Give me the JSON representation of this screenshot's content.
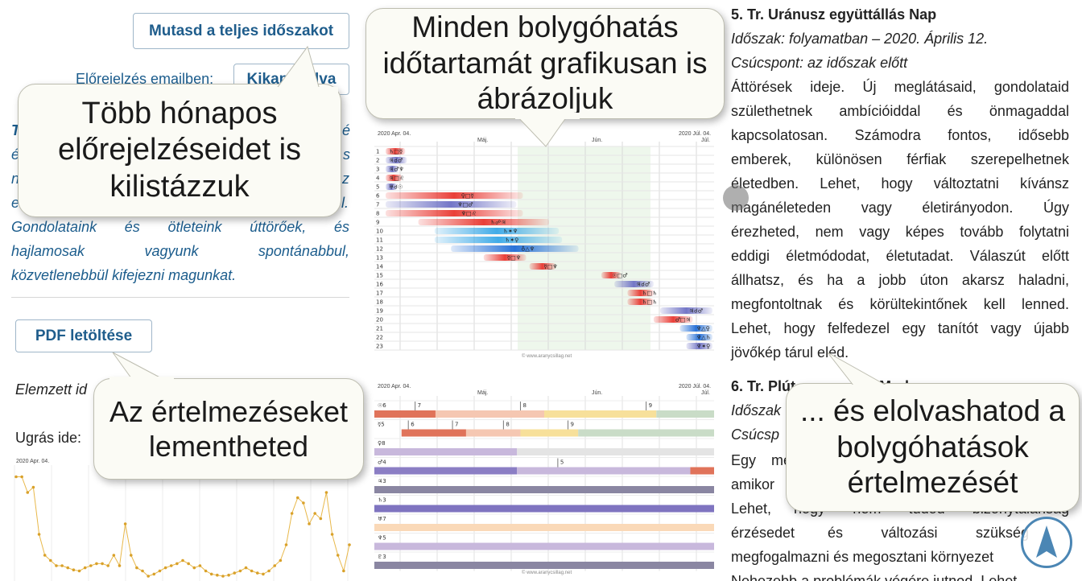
{
  "left": {
    "show_full_periods_button": "Mutasd a teljes időszakot",
    "email_forecast_label": "Előrejelzés emailben:",
    "email_forecast_button": "Kikapcsolva",
    "partial_glyphs": [
      "T",
      "é",
      "é",
      "s",
      "n",
      "z",
      "e",
      "l."
    ],
    "intro_lines": [
      "Gondolataink és ötleteink úttörőek, és",
      "hajlamosak vagyunk spontánabbul,",
      "közvetlenebbül kifejezni magunkat."
    ],
    "pdf_button": "PDF letöltése",
    "analyzed_label_partial": "Elemzett id",
    "jump_label": "Ugrás ide:",
    "mini_chart_date": "2020 Apr. 04."
  },
  "bubbles": {
    "months_forecast": "Több hónapos előrejelzéseidet is kilistázzuk",
    "graphic_duration": "Minden bolygóhatás időtartamát grafikusan is ábrázoljuk",
    "save_interpretations": "Az értelmezéseket lementheted",
    "read_interpretations": "... és elolvashatod a bolygóhatások értelmezését"
  },
  "chart_top": {
    "start_date": "2020 Apr. 04.",
    "end_date": "2020 Júl. 04.",
    "months": [
      "Máj.",
      "Jún.",
      "Júl."
    ],
    "watermark": "© www.aranycsillag.net",
    "row_numbers": [
      "1",
      "2",
      "3",
      "4",
      "5",
      "6",
      "7",
      "8",
      "9",
      "10",
      "11",
      "12",
      "13",
      "14",
      "15",
      "16",
      "17",
      "18",
      "19",
      "20",
      "21",
      "22",
      "23"
    ],
    "row_labels": [
      "♄□☿",
      "♃☌♂",
      "♃♂♆",
      "♃□♌",
      "♅☌☉",
      "♀□☿",
      "♆□♂",
      "♆□♌",
      "♄☍♃",
      "♄✶♆",
      "♄✶♀",
      "♁△♆",
      "☿□♆",
      "☿□♆",
      "☉□♂",
      "♃☌♂",
      "♄□♄",
      "♄□♄",
      "♃☌♂",
      "♂□♃",
      "♆△♀",
      "♆△♄",
      "♆✶♀"
    ],
    "bars": [
      {
        "row": 1,
        "start": 0,
        "end": 0.06,
        "color": "red"
      },
      {
        "row": 2,
        "start": 0,
        "end": 0.065,
        "color": "blue"
      },
      {
        "row": 3,
        "start": 0,
        "end": 0.04,
        "color": "blue"
      },
      {
        "row": 4,
        "start": 0,
        "end": 0.05,
        "color": "red"
      },
      {
        "row": 5,
        "start": 0,
        "end": 0.035,
        "color": "blue"
      },
      {
        "row": 6,
        "start": 0,
        "end": 0.42,
        "color": "red"
      },
      {
        "row": 7,
        "start": 0,
        "end": 0.4,
        "color": "blue"
      },
      {
        "row": 8,
        "start": 0,
        "end": 0.42,
        "color": "red"
      },
      {
        "row": 9,
        "start": 0.1,
        "end": 0.5,
        "color": "red"
      },
      {
        "row": 10,
        "start": 0.15,
        "end": 0.53,
        "color": "cyan"
      },
      {
        "row": 11,
        "start": 0.15,
        "end": 0.54,
        "color": "cyan"
      },
      {
        "row": 12,
        "start": 0.2,
        "end": 0.59,
        "color": "deep"
      },
      {
        "row": 13,
        "start": 0.3,
        "end": 0.43,
        "color": "red"
      },
      {
        "row": 14,
        "start": 0.44,
        "end": 0.52,
        "color": "red"
      },
      {
        "row": 15,
        "start": 0.66,
        "end": 0.72,
        "color": "red"
      },
      {
        "row": 16,
        "start": 0.7,
        "end": 0.82,
        "color": "blue"
      },
      {
        "row": 17,
        "start": 0.74,
        "end": 0.82,
        "color": "red"
      },
      {
        "row": 18,
        "start": 0.74,
        "end": 0.82,
        "color": "red"
      },
      {
        "row": 19,
        "start": 0.84,
        "end": 1.0,
        "color": "blue"
      },
      {
        "row": 20,
        "start": 0.82,
        "end": 0.94,
        "color": "red"
      },
      {
        "row": 21,
        "start": 0.9,
        "end": 1.0,
        "color": "deep"
      },
      {
        "row": 22,
        "start": 0.92,
        "end": 1.0,
        "color": "deep"
      },
      {
        "row": 23,
        "start": 0.92,
        "end": 1.0,
        "color": "blue"
      }
    ]
  },
  "chart_bottom": {
    "start_date": "2020 Apr. 04.",
    "end_date": "2020 Júl. 04.",
    "months": [
      "Máj.",
      "Jún.",
      "Júl."
    ],
    "watermark": "© www.aranycsillag.net",
    "rows": [
      {
        "label": "☉6",
        "marks": [
          {
            "p": 0.12,
            "t": "7"
          },
          {
            "p": 0.43,
            "t": "8"
          },
          {
            "p": 0.8,
            "t": "9"
          }
        ],
        "segs": [
          {
            "s": 0,
            "e": 0.18,
            "c": "#e0735a"
          },
          {
            "s": 0.18,
            "e": 0.5,
            "c": "#f5c7b2"
          },
          {
            "s": 0.5,
            "e": 0.83,
            "c": "#f7e09a"
          },
          {
            "s": 0.83,
            "e": 1,
            "c": "#c9dcc7"
          }
        ]
      },
      {
        "label": "☿5",
        "marks": [
          {
            "p": 0.1,
            "t": "6"
          },
          {
            "p": 0.23,
            "t": "7"
          },
          {
            "p": 0.38,
            "t": "8"
          },
          {
            "p": 0.57,
            "t": "9"
          }
        ],
        "segs": [
          {
            "s": 0.08,
            "e": 0.27,
            "c": "#e0735a"
          },
          {
            "s": 0.27,
            "e": 0.43,
            "c": "#f5c7b2"
          },
          {
            "s": 0.43,
            "e": 0.6,
            "c": "#f7e09a"
          },
          {
            "s": 0.6,
            "e": 1,
            "c": "#c9dcc7"
          }
        ]
      },
      {
        "label": "♀8",
        "marks": [],
        "segs": [
          {
            "s": 0,
            "e": 0.42,
            "c": "#c8b8dc"
          },
          {
            "s": 0.42,
            "e": 1,
            "c": "#e4e4e4"
          }
        ]
      },
      {
        "label": "♂4",
        "marks": [
          {
            "p": 0.54,
            "t": "5"
          }
        ],
        "segs": [
          {
            "s": 0,
            "e": 0.42,
            "c": "#8b7ec4"
          },
          {
            "s": 0.42,
            "e": 0.93,
            "c": "#c8b8dc"
          },
          {
            "s": 0.93,
            "e": 1,
            "c": "#e0735a"
          }
        ]
      },
      {
        "label": "♃3",
        "marks": [],
        "segs": [
          {
            "s": 0,
            "e": 1,
            "c": "#8a86a2"
          }
        ]
      },
      {
        "label": "♄3",
        "marks": [],
        "segs": [
          {
            "s": 0,
            "e": 1,
            "c": "#7f74c0"
          }
        ]
      },
      {
        "label": "♅7",
        "marks": [],
        "segs": [
          {
            "s": 0,
            "e": 1,
            "c": "#fad9b8"
          }
        ]
      },
      {
        "label": "♆5",
        "marks": [],
        "segs": [
          {
            "s": 0,
            "e": 1,
            "c": "#c8b8dc"
          }
        ]
      },
      {
        "label": "♇3",
        "marks": [],
        "segs": [
          {
            "s": 0,
            "e": 1,
            "c": "#8a86a2"
          }
        ]
      }
    ]
  },
  "mini_chart_data": {
    "type": "line",
    "y": [
      0.95,
      0.95,
      0.8,
      0.85,
      0.4,
      0.2,
      0.15,
      0.1,
      0.1,
      0.08,
      0.06,
      0.05,
      0.08,
      0.1,
      0.12,
      0.12,
      0.1,
      0.2,
      0.1,
      0.5,
      0.2,
      0.08,
      0.05,
      0.0,
      0.02,
      0.05,
      0.08,
      0.1,
      0.12,
      0.15,
      0.12,
      0.08,
      0.1,
      0.05,
      0.02,
      0.01,
      0.0,
      0.01,
      0.03,
      0.05,
      0.08,
      0.05,
      0.03,
      0.02,
      0.05,
      0.1,
      0.15,
      0.3,
      0.6,
      0.75,
      0.7,
      0.5,
      0.6,
      0.55,
      0.8,
      0.4,
      0.2,
      0.05,
      0.3
    ]
  },
  "right": {
    "heading5": "5. Tr. Uránusz együttállás Nap",
    "period5": "Időszak: folyamatban – 2020. Április 12.",
    "peak5": "Csúcspont: az időszak előtt",
    "body5_lines": [
      "Áttörések ideje. Új meglátásaid, gondolataid",
      "születhetnek ambícióiddal és önmagaddal",
      "kapcsolatosan. Számodra fontos, idősebb",
      "emberek, különösen férfiak szerepelhetnek",
      "életedben. Lehet, hogy változtatni kívánsz",
      "magánéleteden vagy életirányodon. Úgy",
      "érezheted, nem vagy képes tovább folytatni",
      "eddigi életmódodat, életutadat. Válaszút előtt",
      "állhatsz, és ha a jobb úton akarsz haladni,",
      "megfontoltnak és körültekintőnek kell lenned.",
      "Lehet, hogy felfedezel egy tanítót vagy újabb",
      "jövőkép tárul eléd."
    ],
    "heading6_partial": "6. Tr. Plút",
    "heading6_tail": "Mark",
    "period6_partial": "Időszak",
    "peak6_partial": "Csúcsp",
    "body6_fragments": [
      {
        "a": "Egy",
        "b": "me"
      },
      {
        "a": "amikor",
        "b": ""
      },
      {
        "a": "Lehet,",
        "b": "hogy nem tudod bizonytalanság"
      },
      {
        "a": "érzésedet",
        "b": "és változási szükség"
      },
      {
        "a": "megfogalmazni és megosztani környezet",
        "b": ""
      },
      {
        "a": "Nehezebb a problémák végére jutnod. Lehet,",
        "b": ""
      }
    ]
  }
}
